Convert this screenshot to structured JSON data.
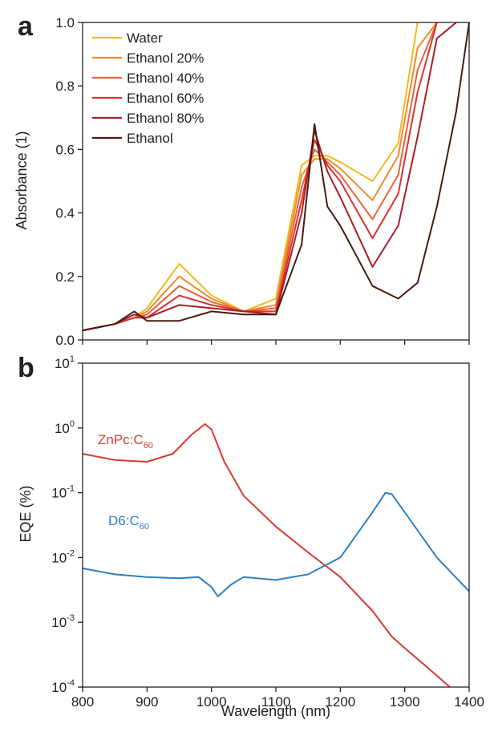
{
  "chart_data": [
    {
      "panel_label": "a",
      "type": "line",
      "ylabel": "Absorbance (1)",
      "xlim": [
        800,
        1400
      ],
      "ylim": [
        0,
        1.0
      ],
      "y_ticks": [
        "0.0",
        "0.2",
        "0.4",
        "0.6",
        "0.8",
        "1.0"
      ],
      "legend_position": "top-left",
      "x": [
        800,
        850,
        880,
        900,
        950,
        1000,
        1050,
        1100,
        1140,
        1160,
        1180,
        1200,
        1250,
        1290,
        1320,
        1350,
        1380,
        1400
      ],
      "series": [
        {
          "name": "Water",
          "color": "#F4B81E",
          "values": [
            0.03,
            0.05,
            0.07,
            0.1,
            0.24,
            0.14,
            0.09,
            0.13,
            0.55,
            0.58,
            0.58,
            0.56,
            0.5,
            0.62,
            1.0,
            null,
            null,
            null
          ]
        },
        {
          "name": "Ethanol 20%",
          "color": "#EE8A2A",
          "values": [
            0.03,
            0.05,
            0.07,
            0.09,
            0.2,
            0.13,
            0.09,
            0.11,
            0.52,
            0.57,
            0.57,
            0.54,
            0.44,
            0.58,
            0.92,
            1.0,
            null,
            null
          ]
        },
        {
          "name": "Ethanol 40%",
          "color": "#E8623A",
          "values": [
            0.03,
            0.05,
            0.07,
            0.08,
            0.17,
            0.12,
            0.09,
            0.1,
            0.48,
            0.6,
            0.56,
            0.52,
            0.38,
            0.52,
            0.85,
            1.0,
            null,
            null
          ]
        },
        {
          "name": "Ethanol 60%",
          "color": "#D8322E",
          "values": [
            0.03,
            0.05,
            0.07,
            0.07,
            0.14,
            0.11,
            0.09,
            0.09,
            0.44,
            0.63,
            0.55,
            0.5,
            0.32,
            0.46,
            0.78,
            1.0,
            null,
            null
          ]
        },
        {
          "name": "Ethanol 80%",
          "color": "#A81E22",
          "values": [
            0.03,
            0.05,
            0.08,
            0.07,
            0.11,
            0.1,
            0.09,
            0.08,
            0.4,
            0.66,
            0.53,
            0.45,
            0.23,
            0.36,
            0.64,
            0.95,
            1.0,
            null
          ]
        },
        {
          "name": "Ethanol",
          "color": "#4A1A12",
          "values": [
            0.03,
            0.05,
            0.09,
            0.06,
            0.06,
            0.09,
            0.08,
            0.08,
            0.3,
            0.68,
            0.42,
            0.36,
            0.17,
            0.13,
            0.18,
            0.42,
            0.72,
            1.0
          ]
        }
      ]
    },
    {
      "panel_label": "b",
      "type": "line",
      "xlabel": "Wavelength (nm)",
      "ylabel": "EQE (%)",
      "xlim": [
        800,
        1400
      ],
      "x_ticks": [
        "800",
        "900",
        "1000",
        "1100",
        "1200",
        "1300",
        "1400"
      ],
      "y_scale": "log",
      "ylim": [
        0.0001,
        10
      ],
      "y_tick_mantissa": "10",
      "y_tick_exponents": [
        "1",
        "0",
        "-1",
        "-2",
        "-3",
        "-4"
      ],
      "series": [
        {
          "name": "ZnPc:C60",
          "label_main": "ZnPc:C",
          "label_sub": "60",
          "color": "#D63A34",
          "x": [
            800,
            850,
            900,
            940,
            970,
            990,
            1000,
            1020,
            1050,
            1100,
            1150,
            1200,
            1250,
            1280,
            1300,
            1350,
            1370
          ],
          "values": [
            0.4,
            0.32,
            0.3,
            0.4,
            0.8,
            1.15,
            0.95,
            0.3,
            0.09,
            0.03,
            0.012,
            0.005,
            0.0015,
            0.0006,
            0.0004,
            0.00015,
            0.0001
          ]
        },
        {
          "name": "D6:C60",
          "label_main": "D6:C",
          "label_sub": "60",
          "color": "#2E7EC2",
          "x": [
            800,
            850,
            900,
            950,
            980,
            1000,
            1010,
            1030,
            1050,
            1100,
            1150,
            1200,
            1250,
            1270,
            1280,
            1300,
            1350,
            1400
          ],
          "values": [
            0.0068,
            0.0055,
            0.005,
            0.0048,
            0.005,
            0.0035,
            0.0025,
            0.0038,
            0.005,
            0.0045,
            0.0055,
            0.01,
            0.05,
            0.1,
            0.095,
            0.05,
            0.01,
            0.003
          ]
        }
      ]
    }
  ]
}
